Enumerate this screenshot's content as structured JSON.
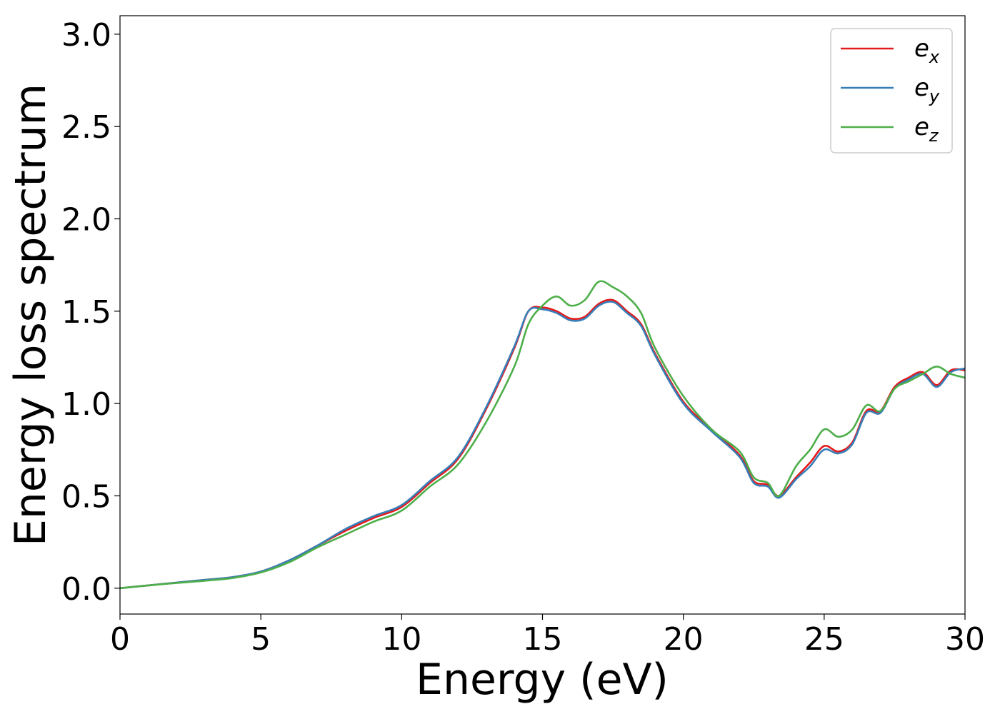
{
  "chart_data": {
    "type": "line",
    "title": "",
    "xlabel": "Energy (eV)",
    "ylabel": "Energy loss spectrum",
    "xlim": [
      0,
      30
    ],
    "ylim": [
      -0.14,
      3.1
    ],
    "xticks": [
      0,
      5,
      10,
      15,
      20,
      25,
      30
    ],
    "xtick_labels": [
      "0",
      "5",
      "10",
      "15",
      "20",
      "25",
      "30"
    ],
    "yticks": [
      0.0,
      0.5,
      1.0,
      1.5,
      2.0,
      2.5,
      3.0
    ],
    "ytick_labels": [
      "0.0",
      "0.5",
      "1.0",
      "1.5",
      "2.0",
      "2.5",
      "3.0"
    ],
    "grid": false,
    "legend_position": "top-right",
    "series": [
      {
        "name": "e_x",
        "legend_base": "e",
        "legend_sub": "x",
        "color": "#e31a1c",
        "x": [
          0,
          1,
          2,
          3,
          4,
          5,
          6,
          7,
          8,
          9,
          10,
          11,
          12,
          13,
          14,
          14.5,
          15,
          15.5,
          16,
          16.5,
          17,
          17.5,
          18,
          18.5,
          19,
          20,
          21,
          22,
          22.5,
          23,
          23.4,
          24,
          24.5,
          25,
          25.5,
          26,
          26.5,
          27,
          27.5,
          28,
          28.5,
          29,
          29.5,
          30
        ],
        "y": [
          0.0,
          0.015,
          0.03,
          0.045,
          0.06,
          0.09,
          0.15,
          0.23,
          0.31,
          0.38,
          0.44,
          0.57,
          0.7,
          0.97,
          1.3,
          1.5,
          1.52,
          1.5,
          1.46,
          1.47,
          1.54,
          1.56,
          1.5,
          1.43,
          1.27,
          1.01,
          0.86,
          0.72,
          0.58,
          0.56,
          0.5,
          0.6,
          0.68,
          0.77,
          0.74,
          0.79,
          0.96,
          0.96,
          1.09,
          1.14,
          1.17,
          1.1,
          1.18,
          1.18
        ]
      },
      {
        "name": "e_y",
        "legend_base": "e",
        "legend_sub": "y",
        "color": "#377eb8",
        "x": [
          0,
          1,
          2,
          3,
          4,
          5,
          6,
          7,
          8,
          9,
          10,
          11,
          12,
          13,
          14,
          14.5,
          15,
          15.5,
          16,
          16.5,
          17,
          17.5,
          18,
          18.5,
          19,
          20,
          21,
          22,
          22.5,
          23,
          23.4,
          24,
          24.5,
          25,
          25.5,
          26,
          26.5,
          27,
          27.5,
          28,
          28.5,
          29,
          29.5,
          30
        ],
        "y": [
          0.0,
          0.015,
          0.03,
          0.045,
          0.06,
          0.09,
          0.15,
          0.23,
          0.32,
          0.39,
          0.45,
          0.58,
          0.71,
          0.98,
          1.31,
          1.5,
          1.51,
          1.49,
          1.45,
          1.46,
          1.53,
          1.55,
          1.49,
          1.42,
          1.26,
          1.0,
          0.85,
          0.71,
          0.57,
          0.55,
          0.49,
          0.59,
          0.66,
          0.75,
          0.73,
          0.78,
          0.95,
          0.95,
          1.08,
          1.13,
          1.16,
          1.09,
          1.17,
          1.19
        ]
      },
      {
        "name": "e_z",
        "legend_base": "e",
        "legend_sub": "z",
        "color": "#4daf4a",
        "x": [
          0,
          1,
          2,
          3,
          4,
          5,
          6,
          7,
          8,
          9,
          10,
          11,
          12,
          13,
          14,
          14.5,
          15,
          15.5,
          16,
          16.5,
          17,
          17.5,
          18,
          18.5,
          19,
          20,
          21,
          22,
          22.5,
          23,
          23.4,
          24,
          24.5,
          25,
          25.5,
          26,
          26.5,
          27,
          27.5,
          28,
          28.5,
          29,
          29.5,
          30
        ],
        "y": [
          0.0,
          0.015,
          0.028,
          0.04,
          0.055,
          0.085,
          0.14,
          0.22,
          0.29,
          0.36,
          0.42,
          0.55,
          0.67,
          0.9,
          1.2,
          1.43,
          1.53,
          1.58,
          1.53,
          1.56,
          1.66,
          1.63,
          1.58,
          1.49,
          1.3,
          1.04,
          0.86,
          0.74,
          0.6,
          0.57,
          0.5,
          0.66,
          0.75,
          0.86,
          0.82,
          0.86,
          0.99,
          0.96,
          1.08,
          1.12,
          1.16,
          1.2,
          1.16,
          1.14
        ]
      }
    ]
  }
}
